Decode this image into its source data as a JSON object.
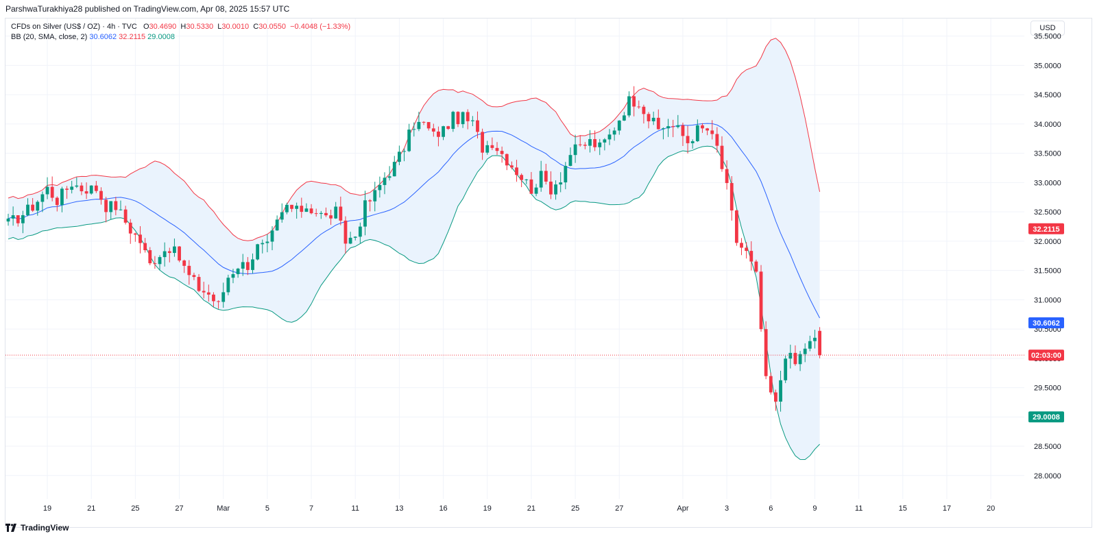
{
  "publish_line": "ParshwaTurakhiya28 published on TradingView.com, Apr 08, 2025 15:57 UTC",
  "legend": {
    "symbol": "CFDs on Silver (US$ / OZ) · 4h · TVC",
    "o_label": "O",
    "o": "30.4690",
    "h_label": "H",
    "h": "30.5330",
    "l_label": "L",
    "l": "30.0010",
    "c_label": "C",
    "c": "30.0550",
    "change": "−0.4048 (−1.33%)",
    "bb_label": "BB (20, SMA, close, 2)",
    "bb_basis": "30.6062",
    "bb_upper": "32.2115",
    "bb_lower": "29.0008"
  },
  "currency": "USD",
  "brand": "TradingView",
  "colors": {
    "up": "#089981",
    "down": "#f23645",
    "upper_band": "#f23645",
    "basis": "#2962ff",
    "lower_band": "#089981",
    "band_fill": "#eaf3fd",
    "grid": "#f0f3fa",
    "axis_text": "#131722"
  },
  "chart_data": {
    "type": "candlestick",
    "timeframe": "4h",
    "ylim": [
      27.6,
      35.8
    ],
    "y_ticks": [
      "28.0000",
      "28.5000",
      "29.0000",
      "29.5000",
      "30.0000",
      "30.5000",
      "31.0000",
      "31.5000",
      "32.0000",
      "32.5000",
      "33.0000",
      "33.5000",
      "34.0000",
      "34.5000",
      "35.0000",
      "35.5000"
    ],
    "x_ticks": [
      {
        "label": "19",
        "i": 8
      },
      {
        "label": "21",
        "i": 17
      },
      {
        "label": "25",
        "i": 26
      },
      {
        "label": "27",
        "i": 35
      },
      {
        "label": "Mar",
        "i": 44
      },
      {
        "label": "5",
        "i": 53
      },
      {
        "label": "7",
        "i": 62
      },
      {
        "label": "11",
        "i": 71
      },
      {
        "label": "13",
        "i": 80
      },
      {
        "label": "16",
        "i": 89
      },
      {
        "label": "19",
        "i": 98
      },
      {
        "label": "21",
        "i": 107
      },
      {
        "label": "25",
        "i": 116
      },
      {
        "label": "27",
        "i": 125
      },
      {
        "label": "Apr",
        "i": 138
      },
      {
        "label": "3",
        "i": 147
      },
      {
        "label": "6",
        "i": 156
      },
      {
        "label": "9",
        "i": 165
      },
      {
        "label": "11",
        "i": 174
      },
      {
        "label": "15",
        "i": 183
      },
      {
        "label": "17",
        "i": 192
      },
      {
        "label": "20",
        "i": 201
      }
    ],
    "price_labels": [
      {
        "text": "32.2115",
        "value": 32.2115,
        "color": "#f23645"
      },
      {
        "text": "30.6062",
        "value": 30.6062,
        "color": "#2962ff"
      },
      {
        "text": "02:03:00",
        "value": 30.055,
        "color": "#f23645"
      },
      {
        "text": "29.0008",
        "value": 29.0008,
        "color": "#089981"
      }
    ],
    "current_price": 30.055,
    "waypoints": [
      [
        0,
        32.3
      ],
      [
        2,
        32.4
      ],
      [
        5,
        32.6
      ],
      [
        8,
        32.9
      ],
      [
        10,
        32.7
      ],
      [
        13,
        33.0
      ],
      [
        15,
        32.9
      ],
      [
        18,
        32.9
      ],
      [
        20,
        32.6
      ],
      [
        22,
        32.6
      ],
      [
        25,
        32.2
      ],
      [
        27,
        32.0
      ],
      [
        29,
        31.6
      ],
      [
        31,
        31.8
      ],
      [
        33,
        31.9
      ],
      [
        35,
        31.7
      ],
      [
        37,
        31.4
      ],
      [
        39,
        31.2
      ],
      [
        41,
        31.1
      ],
      [
        43,
        30.9
      ],
      [
        45,
        31.4
      ],
      [
        47,
        31.6
      ],
      [
        49,
        31.6
      ],
      [
        51,
        31.9
      ],
      [
        53,
        31.9
      ],
      [
        55,
        32.3
      ],
      [
        57,
        32.6
      ],
      [
        59,
        32.5
      ],
      [
        61,
        32.6
      ],
      [
        63,
        32.5
      ],
      [
        65,
        32.4
      ],
      [
        67,
        32.5
      ],
      [
        69,
        32.0
      ],
      [
        71,
        32.1
      ],
      [
        73,
        32.6
      ],
      [
        75,
        32.8
      ],
      [
        77,
        33.1
      ],
      [
        79,
        33.3
      ],
      [
        81,
        33.6
      ],
      [
        83,
        34.0
      ],
      [
        85,
        34.0
      ],
      [
        87,
        33.8
      ],
      [
        89,
        33.9
      ],
      [
        91,
        34.1
      ],
      [
        93,
        34.1
      ],
      [
        95,
        34.0
      ],
      [
        97,
        33.6
      ],
      [
        99,
        33.7
      ],
      [
        101,
        33.5
      ],
      [
        103,
        33.3
      ],
      [
        105,
        33.1
      ],
      [
        107,
        32.9
      ],
      [
        109,
        33.1
      ],
      [
        111,
        32.9
      ],
      [
        113,
        33.1
      ],
      [
        115,
        33.5
      ],
      [
        117,
        33.6
      ],
      [
        119,
        33.7
      ],
      [
        121,
        33.6
      ],
      [
        123,
        33.8
      ],
      [
        125,
        34.1
      ],
      [
        127,
        34.4
      ],
      [
        129,
        34.4
      ],
      [
        131,
        34.1
      ],
      [
        133,
        33.9
      ],
      [
        135,
        34.0
      ],
      [
        137,
        33.9
      ],
      [
        139,
        33.7
      ],
      [
        141,
        33.9
      ],
      [
        143,
        33.9
      ],
      [
        145,
        33.6
      ],
      [
        147,
        32.9
      ],
      [
        149,
        32.0
      ],
      [
        151,
        31.8
      ],
      [
        153,
        31.4
      ],
      [
        155,
        29.6
      ],
      [
        157,
        29.2
      ],
      [
        159,
        30.1
      ],
      [
        161,
        29.9
      ],
      [
        163,
        30.2
      ],
      [
        165,
        30.3
      ],
      [
        166,
        30.055
      ]
    ]
  }
}
